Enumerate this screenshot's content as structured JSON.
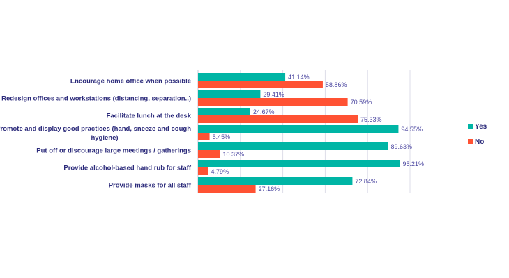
{
  "chart_data": {
    "type": "bar",
    "orientation": "horizontal",
    "categories": [
      [
        "Encourage home office when possible"
      ],
      [
        "Redesign offices and workstations (distancing, separation..)"
      ],
      [
        "Facilitate lunch at the desk"
      ],
      [
        "Promote and display good practices (hand, sneeze and cough",
        "hygiene)"
      ],
      [
        "Put off or discourage large meetings / gatherings"
      ],
      [
        "Provide alcohol-based hand rub for staff"
      ],
      [
        "Provide masks for all staff"
      ]
    ],
    "series": [
      {
        "name": "Yes",
        "color": "#00b5a5",
        "values": [
          41.14,
          29.41,
          24.67,
          94.55,
          89.63,
          95.21,
          72.84
        ],
        "labels": [
          "41.14%",
          "29.41%",
          "24.67%",
          "94.55%",
          "89.63%",
          "95.21%",
          "72.84%"
        ]
      },
      {
        "name": "No",
        "color": "#ff5233",
        "values": [
          58.86,
          70.59,
          75.33,
          5.45,
          10.37,
          4.79,
          27.16
        ],
        "labels": [
          "58.86%",
          "70.59%",
          "75.33%",
          "5.45%",
          "10.37%",
          "4.79%",
          "27.16%"
        ]
      }
    ],
    "xlim": [
      0,
      100
    ],
    "grid": true,
    "legend": "right",
    "title": "",
    "xlabel": "",
    "ylabel": ""
  }
}
